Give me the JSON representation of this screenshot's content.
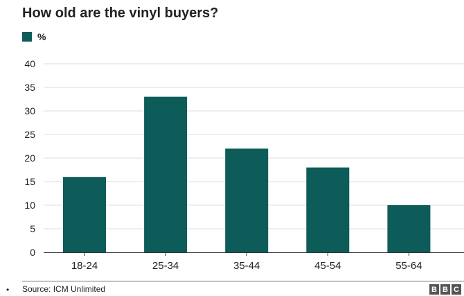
{
  "header": {
    "title": "How old are the vinyl buyers?"
  },
  "footer": {
    "source": "Source: ICM Unlimited",
    "logo_letters": [
      "B",
      "B",
      "C"
    ],
    "bullet": "•"
  },
  "colors": {
    "bar": "#0d5c5a",
    "grid": "#dcdcdc",
    "axis": "#333333",
    "text": "#222222"
  },
  "chart_data": {
    "type": "bar",
    "title": "How old are the vinyl buyers?",
    "xlabel": "",
    "ylabel": "",
    "categories": [
      "18-24",
      "25-34",
      "35-44",
      "45-54",
      "55-64"
    ],
    "series": [
      {
        "name": "%",
        "values": [
          16,
          33,
          22,
          18,
          10
        ]
      }
    ],
    "ylim": [
      0,
      40
    ],
    "yticks": [
      0,
      5,
      10,
      15,
      20,
      25,
      30,
      35,
      40
    ],
    "grid": true,
    "legend": "top-left"
  }
}
